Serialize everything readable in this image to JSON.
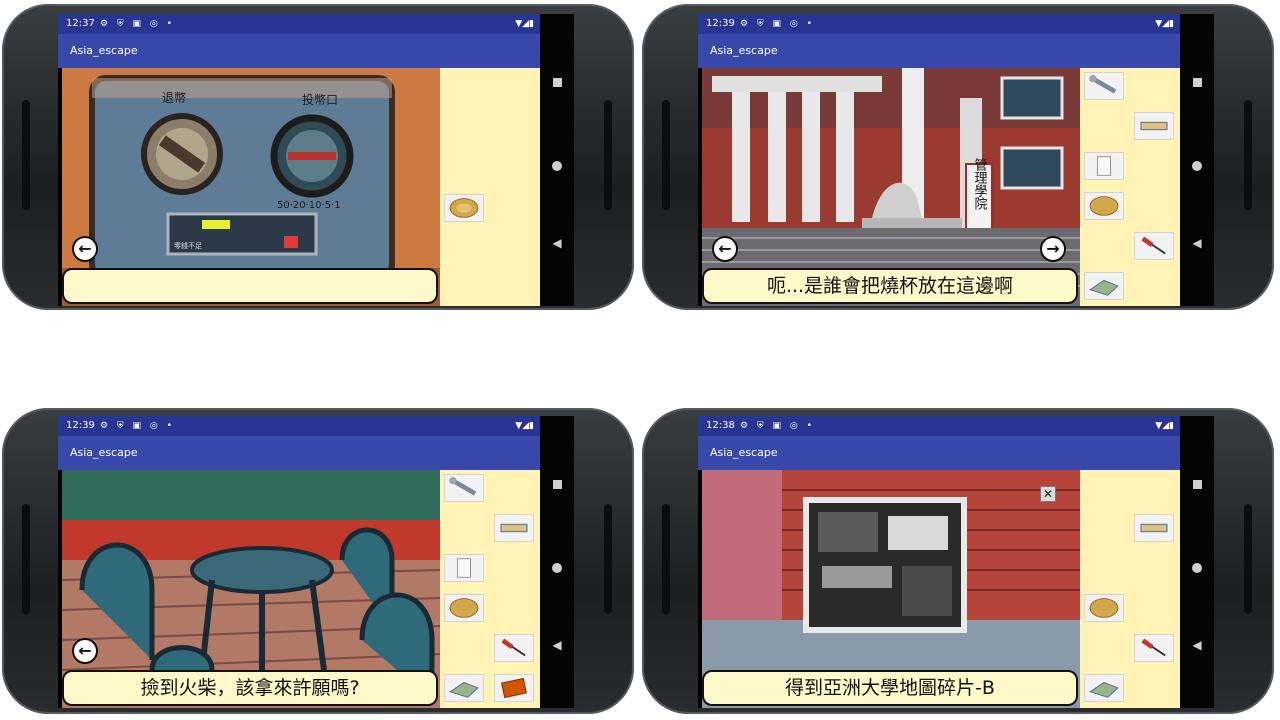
{
  "app": {
    "title": "Asia_escape"
  },
  "screens": [
    {
      "time": "12:37",
      "status_icons": "⚙ ⛨ ▣ ◎ •",
      "status_right": "▼◢▮",
      "dialog": ""
    },
    {
      "time": "12:39",
      "status_icons": "⚙ ⛨ ▣ ◎ •",
      "status_right": "▼◢▮",
      "dialog": "呃...是誰會把燒杯放在這邊啊",
      "scene_sign": "管理學院"
    },
    {
      "time": "12:39",
      "status_icons": "⚙ ⛨ ▣ ◎ •",
      "status_right": "▼◢▮",
      "dialog": "撿到火柴，該拿來許願嗎?"
    },
    {
      "time": "12:38",
      "status_icons": "⚙ ⛨ ▣ ◎ •",
      "status_right": "▼◢▮",
      "dialog": "得到亞洲大學地圖碎片-B"
    }
  ],
  "machine_labels": {
    "refund": "退幣",
    "insert": "投幣口",
    "coins": "50·20·10·5·1",
    "display": "零錢不足"
  },
  "colors": {
    "statusbar": "#283593",
    "appbar": "#3949ab",
    "panel": "#fff3b5",
    "dialog": "#fff9c9"
  }
}
